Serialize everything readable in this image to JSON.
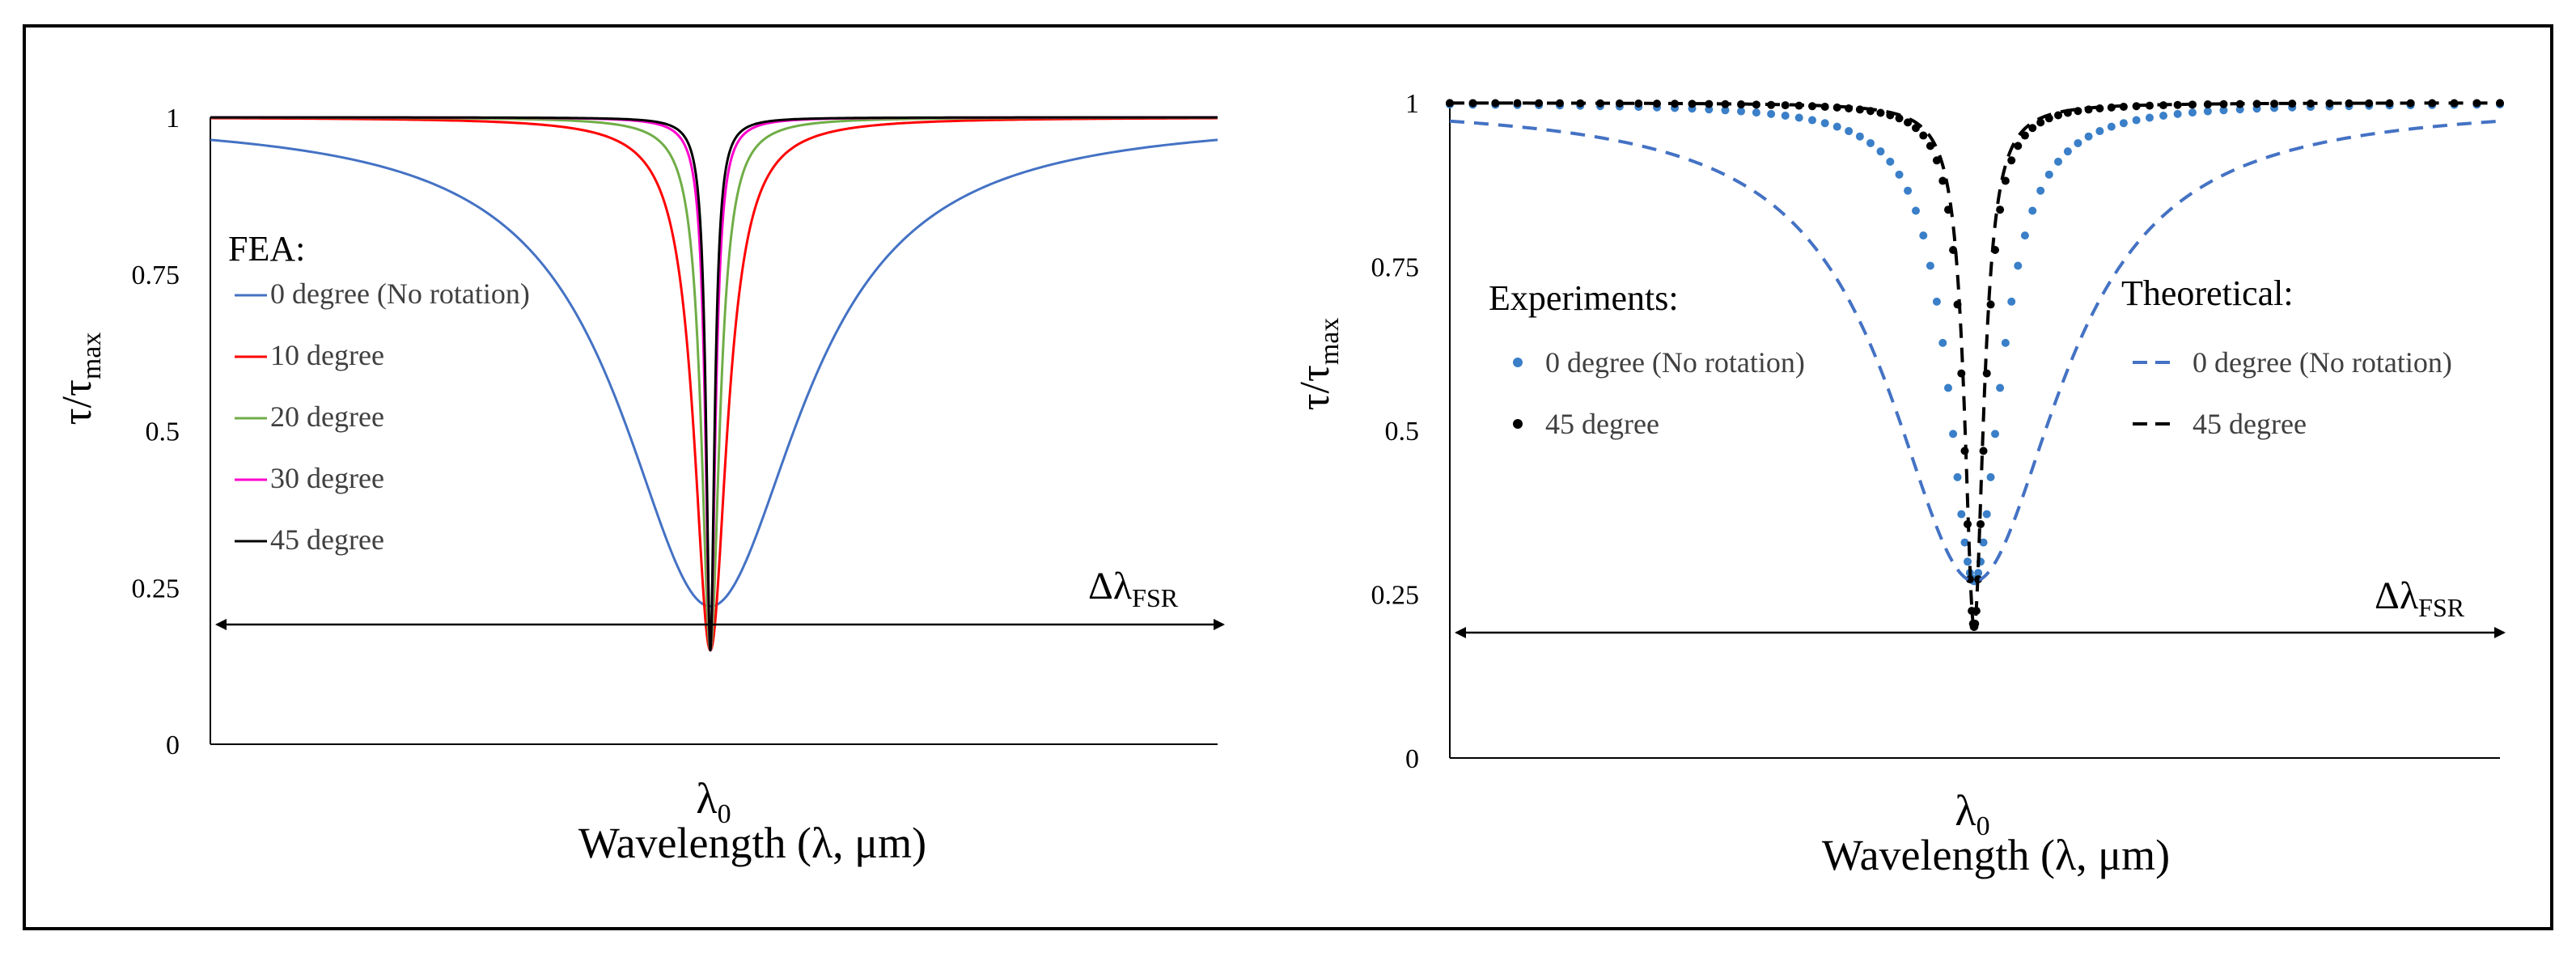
{
  "chart_data": [
    {
      "type": "line",
      "title": "",
      "xlabel": "Wavelength (λ, μm)",
      "x_center_label": "λ0",
      "ylabel": "τ/τmax",
      "ylim": [
        0,
        1
      ],
      "yticks": [
        "0",
        "0.25",
        "0.5",
        "0.75",
        "1"
      ],
      "ytick_values": [
        0,
        0.25,
        0.5,
        0.75,
        1
      ],
      "xlim": [
        -1,
        1
      ],
      "grid": false,
      "legend_title": "FEA:",
      "fsr_label": "Δλ",
      "fsr_subscript": "FSR",
      "series": [
        {
          "name": "0 degree (No rotation)",
          "color": "#4472C4",
          "style": "solid",
          "min": 0.22,
          "width": 0.22
        },
        {
          "name": "10 degree",
          "color": "#FF0000",
          "style": "solid",
          "min": 0.15,
          "width": 0.04
        },
        {
          "name": "20 degree",
          "color": "#70AD47",
          "style": "solid",
          "min": 0.15,
          "width": 0.022
        },
        {
          "name": "30 degree",
          "color": "#FF00CC",
          "style": "solid",
          "min": 0.15,
          "width": 0.012
        },
        {
          "name": "45 degree",
          "color": "#000000",
          "style": "solid",
          "min": 0.15,
          "width": 0.01
        }
      ]
    },
    {
      "type": "line",
      "title": "",
      "xlabel": "Wavelength (λ, μm)",
      "x_center_label": "λ0",
      "ylabel": "τ/τmax",
      "ylim": [
        0,
        1
      ],
      "yticks": [
        "0",
        "0.25",
        "0.5",
        "0.75",
        "1"
      ],
      "ytick_values": [
        0,
        0.25,
        0.5,
        0.75,
        1
      ],
      "xlim": [
        -1,
        1
      ],
      "grid": false,
      "legend_title_experiments": "Experiments:",
      "legend_title_theoretical": "Theoretical:",
      "fsr_label": "Δλ",
      "fsr_subscript": "FSR",
      "series": [
        {
          "name": "0 degree (No rotation)",
          "group": "experiments",
          "color": "#3A7FC8",
          "style": "dots",
          "min": 0.27,
          "width": 0.06
        },
        {
          "name": "45 degree",
          "group": "experiments",
          "color": "#000000",
          "style": "dots",
          "min": 0.2,
          "width": 0.025
        },
        {
          "name": "0 degree (No rotation)",
          "group": "theoretical",
          "color": "#4472C4",
          "style": "dashed",
          "min": 0.27,
          "width": 0.2
        },
        {
          "name": "45 degree",
          "group": "theoretical",
          "color": "#000000",
          "style": "dashed",
          "min": 0.2,
          "width": 0.022
        }
      ]
    }
  ]
}
